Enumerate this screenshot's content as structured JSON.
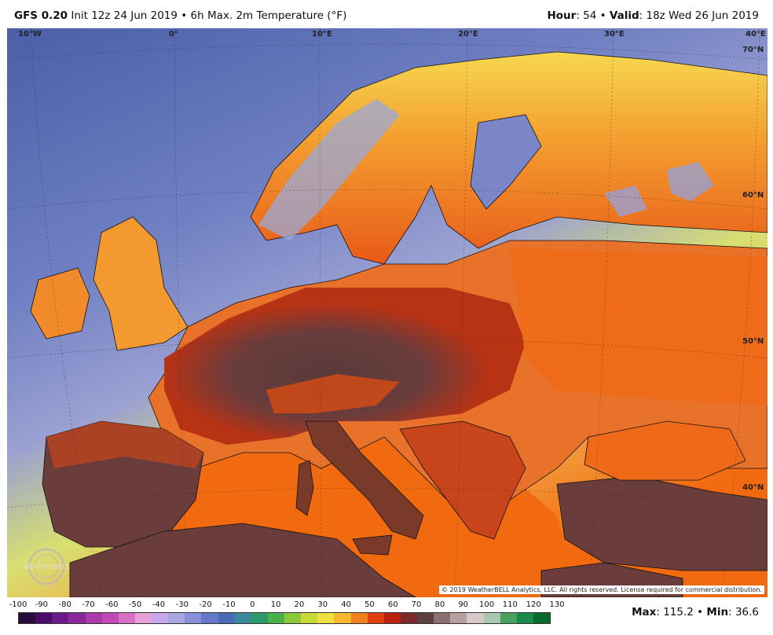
{
  "header": {
    "model": "GFS 0.20",
    "init": "Init 12z 24 Jun 2019",
    "product": "6h Max. 2m Temperature (°F)",
    "hour_label": "Hour",
    "hour": "54",
    "valid_label": "Valid",
    "valid": "18z Wed 26 Jun 2019"
  },
  "map": {
    "lon_labels": [
      "10°W",
      "0°",
      "10°E",
      "20°E",
      "30°E",
      "40°E"
    ],
    "lat_labels": [
      "70°N",
      "60°N",
      "50°N",
      "40°N"
    ],
    "copyright": "© 2019 WeatherBELL Analytics, LLC. All rights reserved. License required for commercial distribution.",
    "logo_text": "WEATHERBELL",
    "colors": {
      "ocean_cold": "#4a5fa8",
      "ocean_mid": "#7a8cc8",
      "warm_land": "#f08a2a",
      "hot_land": "#c83a10",
      "very_hot": "#6a3c3c",
      "ocean_warm": "#f26a10"
    }
  },
  "scale": {
    "labels": [
      "-100",
      "-90",
      "-80",
      "-70",
      "-60",
      "-50",
      "-40",
      "-30",
      "-20",
      "-10",
      "0",
      "10",
      "20",
      "30",
      "40",
      "50",
      "60",
      "70",
      "80",
      "90",
      "100",
      "110",
      "120",
      "130"
    ],
    "colors": [
      "#2a0a3a",
      "#4a0a6a",
      "#6a1a8a",
      "#8a2a9a",
      "#aa3aaa",
      "#c24ab8",
      "#d870c8",
      "#e8a0d8",
      "#c8a8e8",
      "#a8a8e0",
      "#8890d8",
      "#6878c8",
      "#4a6ab8",
      "#3a8a9a",
      "#2a9a6a",
      "#4ab04a",
      "#8ac83a",
      "#c8d83a",
      "#f0e040",
      "#f8b830",
      "#f08020",
      "#e04010",
      "#b82010",
      "#7a2a2a",
      "#5a4040",
      "#8a7070",
      "#b8a0a0",
      "#d8c8c8",
      "#a8c8b0",
      "#4aa060",
      "#1a8a4a",
      "#0a6a2a"
    ]
  },
  "stats": {
    "max_label": "Max",
    "max": "115.2",
    "min_label": "Min",
    "min": "36.6"
  }
}
